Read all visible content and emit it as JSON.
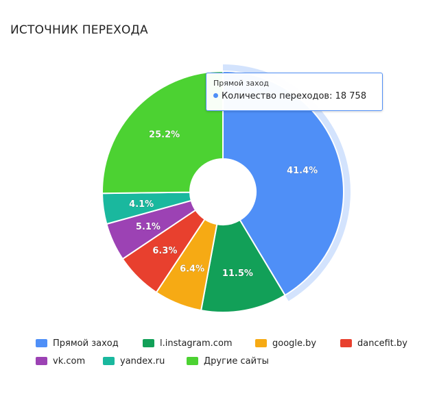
{
  "header": {
    "title": "ИСТОЧНИК ПЕРЕХОДА"
  },
  "tooltip": {
    "title": "Прямой заход",
    "series_label": "Количество переходов: ",
    "value": "18 758",
    "color": "#4f8ff7"
  },
  "chart_data": {
    "type": "pie",
    "donut": true,
    "title": "ИСТОЧНИК ПЕРЕХОДА",
    "legend": "bottom",
    "highlighted": "Прямой заход",
    "slices": [
      {
        "label": "Прямой заход",
        "value": 41.4,
        "display": "41.4%",
        "color": "#4f8ff7"
      },
      {
        "label": "l.instagram.com",
        "value": 11.5,
        "display": "11.5%",
        "color": "#12a058"
      },
      {
        "label": "google.by",
        "value": 6.4,
        "display": "6.4%",
        "color": "#f6aa14"
      },
      {
        "label": "dancefit.by",
        "value": 6.3,
        "display": "6.3%",
        "color": "#e8402e"
      },
      {
        "label": "vk.com",
        "value": 5.1,
        "display": "5.1%",
        "color": "#9c42b4"
      },
      {
        "label": "yandex.ru",
        "value": 4.1,
        "display": "4.1%",
        "color": "#1ab89e"
      },
      {
        "label": "Другие сайты",
        "value": 25.2,
        "display": "25.2%",
        "color": "#4cd232"
      }
    ]
  }
}
